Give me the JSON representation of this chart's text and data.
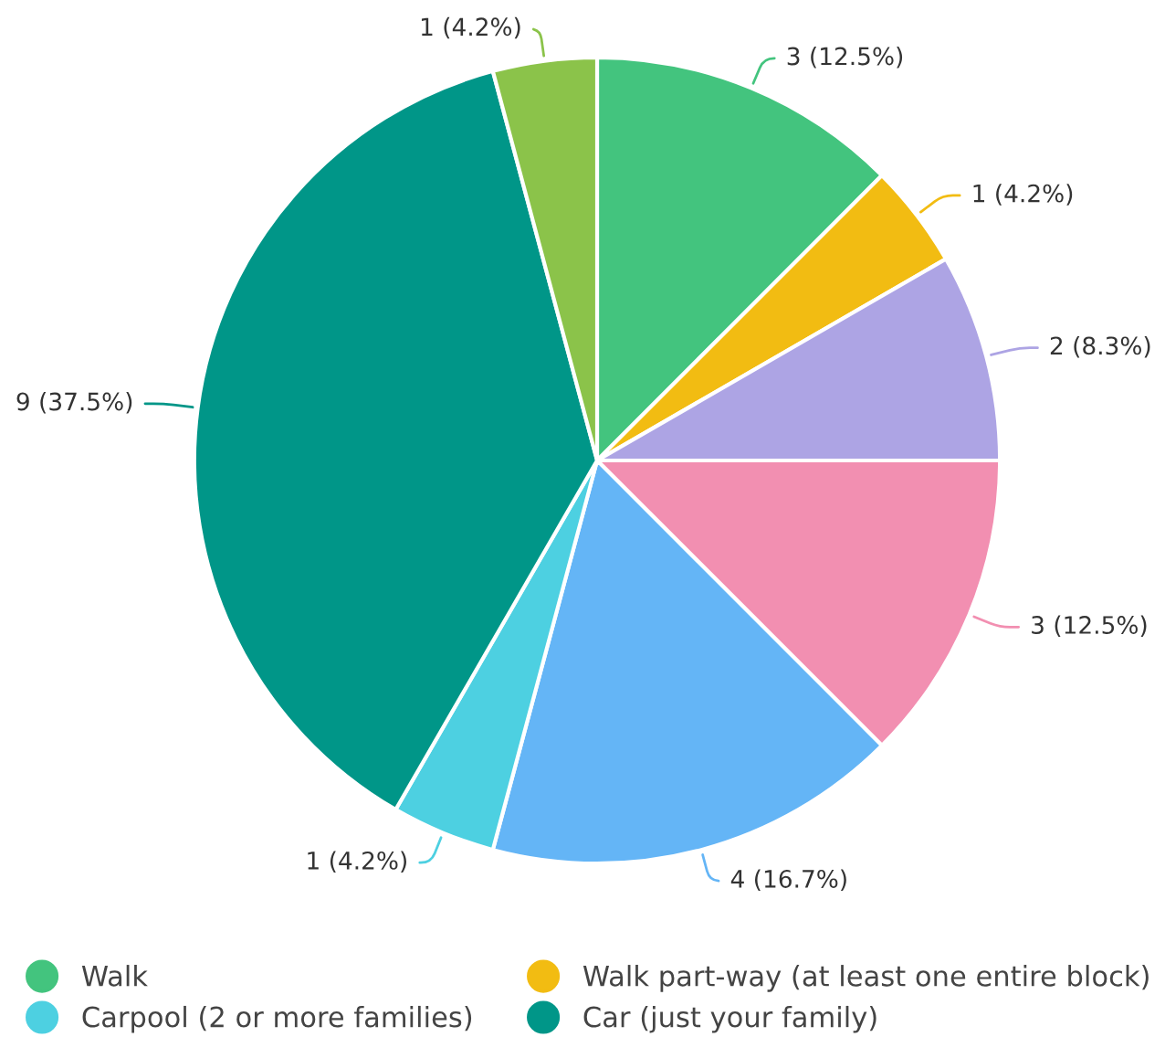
{
  "chart_data": {
    "type": "pie",
    "categories": [
      "Walk",
      "Walk part-way (at least one entire block)",
      null,
      null,
      null,
      "Carpool (2 or more families)",
      "Car (just your family)",
      null
    ],
    "values": [
      3,
      1,
      2,
      3,
      4,
      1,
      9,
      1
    ],
    "value_labels": [
      "3 (12.5%)",
      "1 (4.2%)",
      "2 (8.3%)",
      "3 (12.5%)",
      "4 (16.7%)",
      "1 (4.2%)",
      "9 (37.5%)",
      "1 (4.2%)"
    ],
    "colors": [
      "#43c47e",
      "#f2bc12",
      "#ada4e4",
      "#f28fb1",
      "#64b5f6",
      "#4dd0e1",
      "#009688",
      "#8bc34a"
    ],
    "legend": "bottom"
  }
}
